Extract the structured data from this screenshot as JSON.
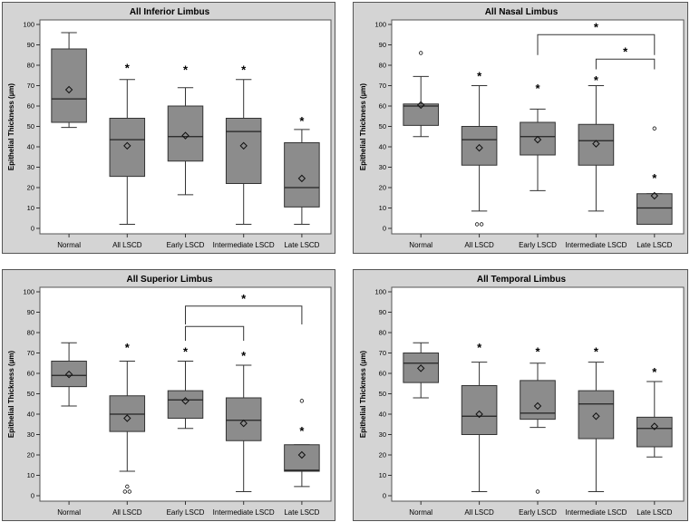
{
  "colors": {
    "panel_bg": "#d4d4d4",
    "plot_bg": "#ffffff",
    "box_fill": "#8c8c8c",
    "line": "#333333"
  },
  "chart_data": [
    {
      "type": "box",
      "title": "All Inferior Limbus",
      "ylabel": "Epithelial Thickness (µm)",
      "ylim": [
        0,
        100
      ],
      "yticks": [
        "0",
        "10",
        "20",
        "30",
        "40",
        "50",
        "60",
        "70",
        "80",
        "90",
        "100"
      ],
      "categories": [
        "Normal",
        "All LSCD",
        "Early LSCD",
        "Intermediate LSCD",
        "Late LSCD"
      ],
      "boxes": [
        {
          "min": 49.5,
          "q1": 52,
          "median": 63.5,
          "q3": 88,
          "max": 96,
          "mean": 68,
          "outliers": [],
          "star": null
        },
        {
          "min": 2,
          "q1": 25.5,
          "median": 43.5,
          "q3": 54,
          "max": 73,
          "mean": 40.5,
          "outliers": [],
          "star": 79
        },
        {
          "min": 16.5,
          "q1": 33,
          "median": 45,
          "q3": 60,
          "max": 69,
          "mean": 45.5,
          "outliers": [],
          "star": 78
        },
        {
          "min": 2,
          "q1": 22,
          "median": 47.5,
          "q3": 54,
          "max": 73,
          "mean": 40.5,
          "outliers": [],
          "star": 78
        },
        {
          "min": 2,
          "q1": 10.5,
          "median": 20,
          "q3": 42,
          "max": 48.5,
          "mean": 24.5,
          "outliers": [],
          "star": 53
        }
      ],
      "brackets": []
    },
    {
      "type": "box",
      "title": "All Nasal Limbus",
      "ylabel": "Epithelial Thickness (µm)",
      "ylim": [
        0,
        100
      ],
      "yticks": [
        "0",
        "10",
        "20",
        "30",
        "40",
        "50",
        "60",
        "70",
        "80",
        "90",
        "100"
      ],
      "categories": [
        "Normal",
        "All LSCD",
        "Early LSCD",
        "Intermediate LSCD",
        "Late LSCD"
      ],
      "boxes": [
        {
          "min": 45,
          "q1": 50.5,
          "median": 60,
          "q3": 61,
          "max": 74.5,
          "mean": 60.5,
          "outliers": [
            86
          ],
          "star": null
        },
        {
          "min": 8.5,
          "q1": 31,
          "median": 43.5,
          "q3": 50,
          "max": 70,
          "mean": 39.5,
          "outliers": [
            2,
            2
          ],
          "star": 75
        },
        {
          "min": 18.5,
          "q1": 36,
          "median": 45,
          "q3": 52,
          "max": 58.5,
          "mean": 43.5,
          "outliers": [],
          "star": 69
        },
        {
          "min": 8.5,
          "q1": 31,
          "median": 43,
          "q3": 51,
          "max": 70,
          "mean": 41.5,
          "outliers": [],
          "star": 73
        },
        {
          "min": 2,
          "q1": 2,
          "median": 10,
          "q3": 17,
          "max": 17,
          "mean": 16,
          "outliers": [
            49
          ],
          "star": 25
        }
      ],
      "brackets": [
        {
          "from": 2,
          "to": 4,
          "level": 95,
          "drop": 85,
          "star": true
        },
        {
          "from": 3,
          "to": 4,
          "level": 83,
          "drop": 78,
          "star": true
        }
      ]
    },
    {
      "type": "box",
      "title": "All Superior Limbus",
      "ylabel": "Epithelial Thickness (µm)",
      "ylim": [
        0,
        100
      ],
      "yticks": [
        "0",
        "10",
        "20",
        "30",
        "40",
        "50",
        "60",
        "70",
        "80",
        "90",
        "100"
      ],
      "categories": [
        "Normal",
        "All LSCD",
        "Early LSCD",
        "Intermediate LSCD",
        "Late LSCD"
      ],
      "boxes": [
        {
          "min": 44,
          "q1": 53.5,
          "median": 59,
          "q3": 66,
          "max": 75,
          "mean": 59.5,
          "outliers": [],
          "star": null
        },
        {
          "min": 12,
          "q1": 31.5,
          "median": 40,
          "q3": 49,
          "max": 66,
          "mean": 38,
          "outliers": [
            4.5,
            2,
            2
          ],
          "star": 73
        },
        {
          "min": 33,
          "q1": 38,
          "median": 47,
          "q3": 51.5,
          "max": 66,
          "mean": 46.5,
          "outliers": [],
          "star": 71
        },
        {
          "min": 2,
          "q1": 27,
          "median": 37,
          "q3": 48,
          "max": 64,
          "mean": 35.5,
          "outliers": [],
          "star": 69
        },
        {
          "min": 4.5,
          "q1": 12,
          "median": 12.5,
          "q3": 25,
          "max": 25,
          "mean": 20,
          "outliers": [
            46.5
          ],
          "star": 32
        }
      ],
      "brackets": [
        {
          "from": 2,
          "to": 4,
          "level": 93,
          "drop": 84,
          "star": true
        },
        {
          "from": 2,
          "to": 3,
          "level": 83,
          "drop": 76,
          "star": false
        }
      ]
    },
    {
      "type": "box",
      "title": "All Temporal Limbus",
      "ylabel": "Epithelial Thickness (µm)",
      "ylim": [
        0,
        100
      ],
      "yticks": [
        "0",
        "10",
        "20",
        "30",
        "40",
        "50",
        "60",
        "70",
        "80",
        "90",
        "100"
      ],
      "categories": [
        "Normal",
        "All LSCD",
        "Early LSCD",
        "Intermediate LSCD",
        "Late LSCD"
      ],
      "boxes": [
        {
          "min": 48,
          "q1": 55.5,
          "median": 65,
          "q3": 70,
          "max": 75,
          "mean": 62.5,
          "outliers": [],
          "star": null
        },
        {
          "min": 2,
          "q1": 30,
          "median": 39,
          "q3": 54,
          "max": 65.5,
          "mean": 40,
          "outliers": [],
          "star": 73
        },
        {
          "min": 33.5,
          "q1": 37.5,
          "median": 40.5,
          "q3": 56.5,
          "max": 65,
          "mean": 44,
          "outliers": [
            2
          ],
          "star": 71
        },
        {
          "min": 2,
          "q1": 28,
          "median": 45,
          "q3": 51.5,
          "max": 65.5,
          "mean": 39,
          "outliers": [],
          "star": 71
        },
        {
          "min": 19,
          "q1": 24,
          "median": 33,
          "q3": 38.5,
          "max": 56,
          "mean": 34,
          "outliers": [],
          "star": 61
        }
      ],
      "brackets": []
    }
  ]
}
